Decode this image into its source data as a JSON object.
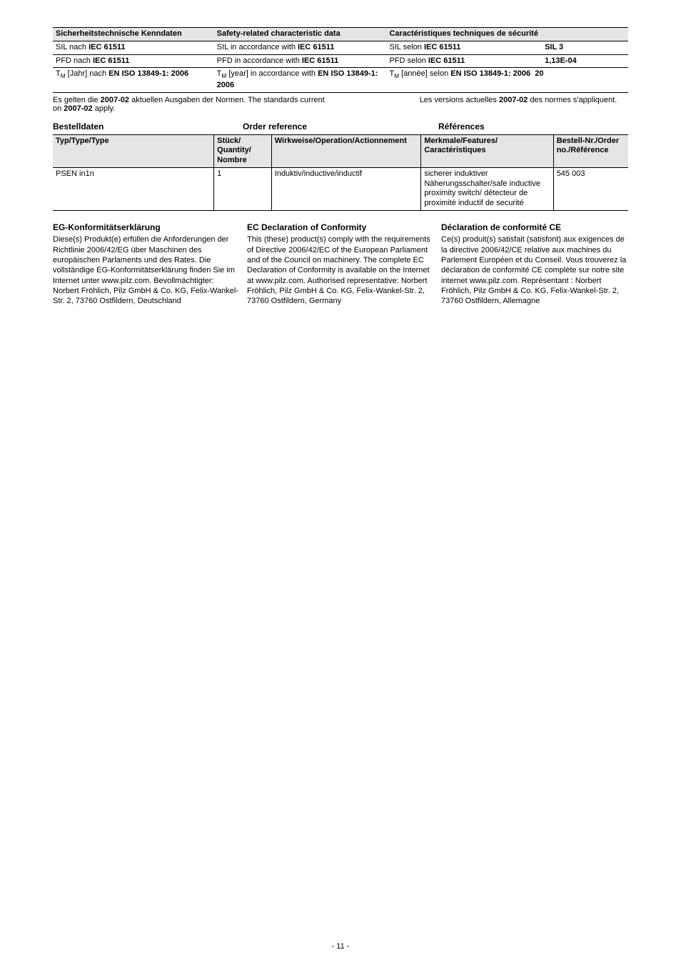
{
  "safety_table": {
    "head": {
      "de": "Sicherheitstechnische Kenndaten",
      "en": "Safety-related characteristic data",
      "fr": "Caractéristiques techniques de sécurité"
    },
    "rows": [
      {
        "de": "SIL nach <b>IEC 61511</b>",
        "en": "SIL in accordance with <b>IEC 61511</b>",
        "fr": "SIL selon <b>IEC 61511</b>",
        "val": "SIL 3",
        "val_bold": true
      },
      {
        "de": "PFD nach <b>IEC 61511</b>",
        "en": "PFD in accordance with <b>IEC 61511</b>",
        "fr": "PFD selon <b>IEC 61511</b>",
        "val": "1,13E-04",
        "val_bold": true
      },
      {
        "de": "T<sub>M</sub> [Jahr] nach <b>EN ISO 13849-1: 2006</b>",
        "en": "T<sub>M</sub> [year] in accordance with <b>EN ISO 13849-1: 2006</b>",
        "fr": "T<sub>M</sub> [année] selon <b>EN ISO 13849-1: 2006</b>",
        "val": "20",
        "val_bold": true,
        "val_inline_with_fr": true
      }
    ]
  },
  "standards_note": {
    "de_en": "Es gelten die <b>2007-02</b> aktuellen Ausgaben der Normen.  The standards current on <b>2007-02</b> apply.",
    "fr": "Les versions actuelles <b>2007-02</b> des normes s'appliquent."
  },
  "order_heads": {
    "de": "Bestelldaten",
    "en": "Order reference",
    "fr": "Références"
  },
  "order_table": {
    "head": {
      "c1": "Typ/Type/Type",
      "c2": "Stück/ Quantity/ Nombre",
      "c3": "Wirkweise/Operation/Actionnement",
      "c4": "Merkmale/Features/ Caractéristiques",
      "c5": "Bestell-Nr./Order no./Référence"
    },
    "rows": [
      {
        "c1": "PSEN in1n",
        "c2": "1",
        "c3": "Induktiv/inductive/inductif",
        "c4": "sicherer induktiver Näherungsschalter/safe inductive proximity switch/ détecteur de proximité inductif de securité",
        "c5": "545 003"
      }
    ]
  },
  "conformity": {
    "de": {
      "title": "EG-Konformitätserklärung",
      "body": "Diese(s) Produkt(e) erfüllen die Anforderungen der Richtlinie 2006/42/EG über Maschinen des europäischen Parlaments und des Rates. Die vollständige EG-Konformitätserklärung finden Sie im Internet unter www.pilz.com. Bevollmächtigter: Norbert Fröhlich, Pilz GmbH & Co. KG, Felix-Wankel-Str. 2, 73760 Ostfildern, Deutschland"
    },
    "en": {
      "title": "EC Declaration of Conformity",
      "body": "This (these) product(s) comply with the requirements of Directive 2006/42/EC of the European Parliament and of the Council on machinery. The complete EC Declaration of Conformity is available on the Internet at www.pilz.com. Authorised representative: Norbert Fröhlich, Pilz GmbH & Co. KG, Felix-Wankel-Str. 2, 73760 Ostfildern, Germany"
    },
    "fr": {
      "title": "Déclaration de conformité CE",
      "body": "Ce(s) produit(s) satisfait (satisfont) aux exigences de la directive 2006/42/CE relative aux machines du Parlement Européen et du Conseil. Vous trouverez la déclaration de conformité CE complète sur notre site internet www.pilz.com. Représentant : Norbert Fröhlich, Pilz GmbH & Co. KG, Felix-Wankel-Str. 2, 73760 Ostfildern, Allemagne"
    }
  },
  "page_number": "- 11 -"
}
